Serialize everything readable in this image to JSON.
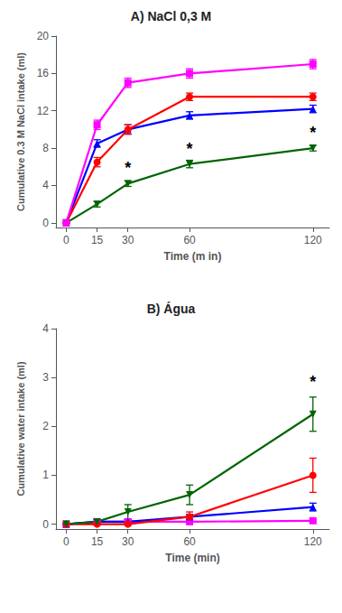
{
  "chart_data": [
    {
      "type": "line",
      "title": "A) NaCl 0,3 M",
      "x_label": "Time (m in)",
      "y_label": "Cumulative 0.3 M NaCl intake (ml)",
      "x": [
        0,
        15,
        30,
        60,
        120
      ],
      "xlim": [
        -5,
        128
      ],
      "xticks": [
        0,
        15,
        30,
        60,
        120
      ],
      "ylim": [
        -0.5,
        20
      ],
      "yticks": [
        0,
        4,
        8,
        12,
        16,
        20
      ],
      "grid": false,
      "series": [
        {
          "color": "#006400",
          "marker": "triangle-down",
          "values": [
            0,
            2.0,
            4.2,
            6.3,
            8.0
          ],
          "errors": [
            0,
            0.3,
            0.3,
            0.4,
            0.3
          ]
        },
        {
          "color": "#0000FF",
          "marker": "triangle",
          "values": [
            0,
            8.5,
            10.0,
            11.5,
            12.2
          ],
          "errors": [
            0,
            0.4,
            0.5,
            0.4,
            0.4
          ]
        },
        {
          "color": "#FF0000",
          "marker": "circle",
          "values": [
            0,
            6.5,
            10.0,
            13.5,
            13.5
          ],
          "errors": [
            0,
            0.5,
            0.5,
            0.4,
            0.4
          ]
        },
        {
          "color": "#FF00FF",
          "marker": "square",
          "values": [
            0,
            10.5,
            15.0,
            16.0,
            17.0
          ],
          "errors": [
            0,
            0.5,
            0.5,
            0.5,
            0.5
          ]
        }
      ],
      "annotations": [
        {
          "x": 30,
          "y": 5.0,
          "text": "*"
        },
        {
          "x": 60,
          "y": 7.0,
          "text": "*"
        },
        {
          "x": 120,
          "y": 8.8,
          "text": "*"
        }
      ]
    },
    {
      "type": "line",
      "title": "B) Água",
      "x_label": "Time (min)",
      "y_label": "Cumulative water intake (ml)",
      "x": [
        0,
        15,
        30,
        60,
        120
      ],
      "xlim": [
        -5,
        128
      ],
      "xticks": [
        0,
        15,
        30,
        60,
        120
      ],
      "ylim": [
        -0.1,
        4
      ],
      "yticks": [
        0,
        1,
        2,
        3,
        4
      ],
      "grid": false,
      "series": [
        {
          "color": "#FF00FF",
          "marker": "square",
          "values": [
            0,
            0.05,
            0.05,
            0.05,
            0.07
          ],
          "errors": [
            0,
            0.03,
            0.03,
            0.03,
            0.03
          ]
        },
        {
          "color": "#0000FF",
          "marker": "triangle",
          "values": [
            0,
            0.05,
            0.05,
            0.15,
            0.35
          ],
          "errors": [
            0,
            0.05,
            0.05,
            0.05,
            0.08
          ]
        },
        {
          "color": "#FF0000",
          "marker": "circle",
          "values": [
            0,
            0.0,
            0.0,
            0.15,
            1.0
          ],
          "errors": [
            0,
            0.02,
            0.02,
            0.1,
            0.35
          ]
        },
        {
          "color": "#006400",
          "marker": "triangle-down",
          "values": [
            0,
            0.05,
            0.25,
            0.6,
            2.25
          ],
          "errors": [
            0,
            0.05,
            0.15,
            0.2,
            0.35
          ]
        }
      ],
      "annotations": [
        {
          "x": 120,
          "y": 2.75,
          "text": "*"
        }
      ]
    }
  ]
}
